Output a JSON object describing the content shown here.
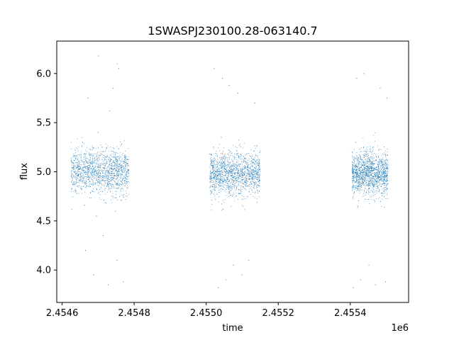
{
  "chart_data": {
    "type": "scatter",
    "title": "1SWASPJ230100.28-063140.7",
    "xlabel": "time",
    "ylabel": "flux",
    "x_offset_label": "1e6",
    "xlim": [
      2454585,
      2455562
    ],
    "ylim": [
      3.67,
      6.33
    ],
    "x_ticks": [
      2454600,
      2454800,
      2455000,
      2455200,
      2455400
    ],
    "x_tick_labels": [
      "2.4546",
      "2.4548",
      "2.4550",
      "2.4552",
      "2.4554"
    ],
    "y_ticks": [
      4.0,
      4.5,
      5.0,
      5.5,
      6.0
    ],
    "y_tick_labels": [
      "4.0",
      "4.5",
      "5.0",
      "5.5",
      "6.0"
    ],
    "grid": false,
    "marker_color": "#1f77b4",
    "marker_size": 1,
    "series": [
      {
        "observing_seasons": [
          {
            "x_range": [
              2454625,
              2454785
            ],
            "median_flux": 5.0
          },
          {
            "x_range": [
              2455010,
              2455150
            ],
            "median_flux": 4.98
          },
          {
            "x_range": [
              2455405,
              2455505
            ],
            "median_flux": 4.98
          }
        ],
        "points": [
          [
            2454625,
            5.12
          ],
          [
            2454630,
            4.87
          ],
          [
            2454636,
            5.22
          ],
          [
            2454641,
            4.78
          ],
          [
            2454646,
            5.05
          ],
          [
            2454652,
            4.95
          ],
          [
            2454657,
            5.3
          ],
          [
            2454662,
            4.66
          ],
          [
            2454668,
            5.1
          ],
          [
            2454673,
            4.92
          ],
          [
            2454679,
            5.18
          ],
          [
            2454684,
            4.8
          ],
          [
            2454690,
            5.01
          ],
          [
            2454695,
            4.55
          ],
          [
            2454700,
            5.4
          ],
          [
            2454706,
            4.98
          ],
          [
            2454711,
            5.25
          ],
          [
            2454716,
            4.71
          ],
          [
            2454722,
            5.08
          ],
          [
            2454727,
            4.93
          ],
          [
            2454732,
            5.62
          ],
          [
            2454738,
            4.85
          ],
          [
            2454743,
            5.2
          ],
          [
            2454748,
            4.6
          ],
          [
            2454753,
            6.1
          ],
          [
            2454756,
            5.05
          ],
          [
            2454760,
            4.88
          ],
          [
            2454765,
            5.28
          ],
          [
            2454770,
            4.74
          ],
          [
            2454775,
            5.15
          ],
          [
            2454780,
            4.95
          ],
          [
            2454785,
            5.02
          ],
          [
            2454665,
            4.2
          ],
          [
            2454672,
            5.75
          ],
          [
            2454688,
            3.95
          ],
          [
            2454701,
            6.18
          ],
          [
            2454714,
            4.35
          ],
          [
            2454728,
            3.85
          ],
          [
            2454742,
            5.85
          ],
          [
            2454752,
            4.1
          ],
          [
            2454757,
            6.05
          ],
          [
            2454770,
            3.88
          ],
          [
            2455010,
            5.18
          ],
          [
            2455015,
            4.8
          ],
          [
            2455020,
            5.25
          ],
          [
            2455026,
            4.72
          ],
          [
            2455031,
            5.05
          ],
          [
            2455036,
            4.9
          ],
          [
            2455042,
            5.35
          ],
          [
            2455047,
            4.62
          ],
          [
            2455052,
            5.12
          ],
          [
            2455058,
            4.88
          ],
          [
            2455063,
            5.22
          ],
          [
            2455068,
            4.76
          ],
          [
            2455074,
            5.02
          ],
          [
            2455079,
            4.95
          ],
          [
            2455084,
            5.18
          ],
          [
            2455090,
            4.82
          ],
          [
            2455095,
            5.08
          ],
          [
            2455100,
            4.92
          ],
          [
            2455106,
            5.14
          ],
          [
            2455111,
            4.85
          ],
          [
            2455116,
            5.06
          ],
          [
            2455122,
            4.96
          ],
          [
            2455127,
            5.1
          ],
          [
            2455132,
            4.89
          ],
          [
            2455138,
            5.03
          ],
          [
            2455143,
            4.94
          ],
          [
            2455148,
            5.05
          ],
          [
            2455022,
            6.05
          ],
          [
            2455033,
            3.82
          ],
          [
            2455045,
            5.95
          ],
          [
            2455055,
            3.9
          ],
          [
            2455064,
            5.88
          ],
          [
            2455075,
            4.05
          ],
          [
            2455088,
            5.8
          ],
          [
            2455099,
            3.95
          ],
          [
            2455118,
            4.1
          ],
          [
            2455135,
            5.7
          ],
          [
            2455405,
            5.2
          ],
          [
            2455410,
            4.78
          ],
          [
            2455415,
            5.3
          ],
          [
            2455421,
            4.65
          ],
          [
            2455426,
            5.1
          ],
          [
            2455431,
            4.88
          ],
          [
            2455437,
            5.25
          ],
          [
            2455442,
            4.72
          ],
          [
            2455447,
            5.05
          ],
          [
            2455452,
            4.9
          ],
          [
            2455458,
            5.15
          ],
          [
            2455463,
            4.8
          ],
          [
            2455468,
            5.02
          ],
          [
            2455474,
            4.85
          ],
          [
            2455479,
            5.22
          ],
          [
            2455484,
            4.7
          ],
          [
            2455489,
            5.08
          ],
          [
            2455495,
            4.95
          ],
          [
            2455500,
            5.12
          ],
          [
            2455505,
            4.88
          ],
          [
            2455408,
            3.82
          ],
          [
            2455418,
            5.95
          ],
          [
            2455429,
            3.9
          ],
          [
            2455438,
            6.0
          ],
          [
            2455452,
            4.05
          ],
          [
            2455470,
            3.85
          ],
          [
            2455483,
            5.85
          ],
          [
            2455498,
            3.88
          ],
          [
            2455502,
            5.75
          ]
        ]
      }
    ]
  }
}
